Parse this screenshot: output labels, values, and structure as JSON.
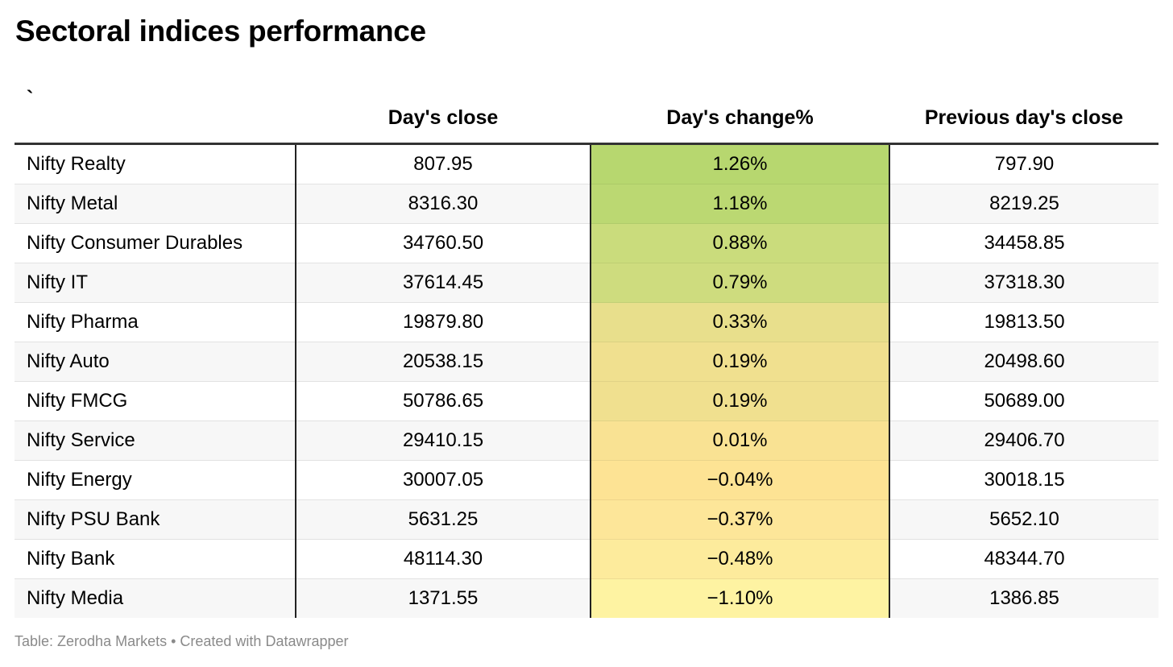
{
  "title": "Sectoral indices performance",
  "footer": "Table: Zerodha Markets • Created with Datawrapper",
  "chart_data": {
    "type": "table",
    "title": "Sectoral indices performance",
    "columns": [
      "`",
      "Day's close",
      "Day's change%",
      "Previous day's close"
    ],
    "rows": [
      {
        "name": "Nifty Realty",
        "close": "807.95",
        "change": "1.26%",
        "prev": "797.90",
        "change_value": 1.26,
        "color": "#b7d76f"
      },
      {
        "name": "Nifty Metal",
        "close": "8316.30",
        "change": "1.18%",
        "prev": "8219.25",
        "change_value": 1.18,
        "color": "#bbd872"
      },
      {
        "name": "Nifty Consumer Durables",
        "close": "34760.50",
        "change": "0.88%",
        "prev": "34458.85",
        "change_value": 0.88,
        "color": "#cadc7c"
      },
      {
        "name": "Nifty IT",
        "close": "37614.45",
        "change": "0.79%",
        "prev": "37318.30",
        "change_value": 0.79,
        "color": "#cedc7e"
      },
      {
        "name": "Nifty Pharma",
        "close": "19879.80",
        "change": "0.33%",
        "prev": "19813.50",
        "change_value": 0.33,
        "color": "#e8df8c"
      },
      {
        "name": "Nifty Auto",
        "close": "20538.15",
        "change": "0.19%",
        "prev": "20498.60",
        "change_value": 0.19,
        "color": "#f0e08f"
      },
      {
        "name": "Nifty FMCG",
        "close": "50786.65",
        "change": "0.19%",
        "prev": "50689.00",
        "change_value": 0.19,
        "color": "#f0e08f"
      },
      {
        "name": "Nifty Service",
        "close": "29410.15",
        "change": "0.01%",
        "prev": "29406.70",
        "change_value": 0.01,
        "color": "#f9e293"
      },
      {
        "name": "Nifty Energy",
        "close": "30007.05",
        "change": "−0.04%",
        "prev": "30018.15",
        "change_value": -0.04,
        "color": "#fde394"
      },
      {
        "name": "Nifty PSU Bank",
        "close": "5631.25",
        "change": "−0.37%",
        "prev": "5652.10",
        "change_value": -0.37,
        "color": "#fde699"
      },
      {
        "name": "Nifty Bank",
        "close": "48114.30",
        "change": "−0.48%",
        "prev": "48344.70",
        "change_value": -0.48,
        "color": "#fdeb9c"
      },
      {
        "name": "Nifty Media",
        "close": "1371.55",
        "change": "−1.10%",
        "prev": "1386.85",
        "change_value": -1.1,
        "color": "#fef3a2"
      }
    ]
  }
}
